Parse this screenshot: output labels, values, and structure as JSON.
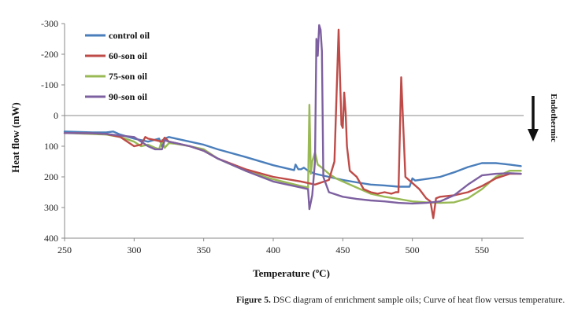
{
  "caption": {
    "label": "Figure 5.",
    "text": "DSC diagram of enrichment sample oils; Curve of heat flow versus temperature."
  },
  "chart_data": {
    "type": "line",
    "title": "",
    "xlabel": "Temperature (ºC)",
    "ylabel": "Heat flow (mW)",
    "xlim": [
      250,
      580
    ],
    "ylim": [
      -300,
      400
    ],
    "y_inverted": true,
    "x_ticks": [
      250,
      300,
      350,
      400,
      450,
      500,
      550
    ],
    "y_ticks": [
      -300,
      -200,
      -100,
      0,
      100,
      200,
      300,
      400
    ],
    "grid": false,
    "legend_position": "top-left",
    "annotation": {
      "text": "Endothermic",
      "arrow": "down",
      "position": "right"
    },
    "series": [
      {
        "name": "control oil",
        "color": "#4a7ebb",
        "x": [
          250,
          270,
          280,
          285,
          290,
          300,
          310,
          318,
          320,
          322,
          325,
          330,
          340,
          350,
          360,
          380,
          400,
          415,
          416,
          418,
          420,
          422,
          425,
          430,
          440,
          450,
          460,
          470,
          480,
          490,
          498,
          500,
          502,
          505,
          510,
          520,
          530,
          540,
          550,
          560,
          570,
          578
        ],
        "y": [
          52,
          55,
          55,
          52,
          62,
          75,
          85,
          75,
          100,
          75,
          70,
          75,
          85,
          95,
          110,
          135,
          162,
          178,
          160,
          175,
          175,
          170,
          180,
          190,
          200,
          210,
          218,
          225,
          228,
          232,
          232,
          205,
          212,
          210,
          207,
          200,
          185,
          168,
          155,
          155,
          160,
          165
        ]
      },
      {
        "name": "60-son oil",
        "color": "#be4b48",
        "x": [
          250,
          270,
          280,
          290,
          300,
          305,
          308,
          310,
          315,
          320,
          322,
          325,
          330,
          340,
          350,
          360,
          380,
          400,
          420,
          430,
          440,
          444,
          447,
          449,
          450,
          451,
          452,
          453,
          455,
          460,
          465,
          470,
          475,
          480,
          485,
          488,
          490,
          492,
          495,
          500,
          505,
          510,
          513,
          515,
          517,
          520,
          530,
          540,
          550,
          560,
          570,
          578
        ],
        "y": [
          57,
          58,
          60,
          70,
          100,
          95,
          70,
          75,
          80,
          85,
          72,
          85,
          90,
          100,
          115,
          140,
          175,
          200,
          215,
          225,
          210,
          150,
          -280,
          30,
          40,
          -75,
          -10,
          100,
          180,
          200,
          240,
          250,
          255,
          250,
          255,
          250,
          250,
          -125,
          200,
          220,
          240,
          270,
          280,
          335,
          270,
          265,
          260,
          250,
          230,
          205,
          190,
          190
        ]
      },
      {
        "name": "75-son oil",
        "color": "#98b954",
        "x": [
          250,
          270,
          280,
          290,
          300,
          305,
          310,
          315,
          318,
          320,
          322,
          325,
          330,
          340,
          350,
          360,
          380,
          400,
          420,
          425,
          426,
          427,
          428,
          430,
          432,
          435,
          440,
          445,
          450,
          460,
          470,
          480,
          490,
          500,
          510,
          520,
          530,
          540,
          550,
          560,
          570,
          578
        ],
        "y": [
          57,
          60,
          62,
          70,
          85,
          100,
          95,
          105,
          110,
          80,
          105,
          90,
          92,
          100,
          110,
          140,
          180,
          208,
          230,
          235,
          -35,
          190,
          150,
          120,
          160,
          170,
          190,
          205,
          215,
          235,
          255,
          265,
          272,
          280,
          283,
          285,
          283,
          270,
          240,
          200,
          180,
          180
        ]
      },
      {
        "name": "90-son oil",
        "color": "#7d60a0",
        "x": [
          250,
          270,
          280,
          290,
          300,
          310,
          315,
          320,
          322,
          325,
          330,
          340,
          350,
          360,
          380,
          400,
          420,
          425,
          426,
          428,
          430,
          431,
          432,
          433,
          434,
          435,
          436,
          440,
          450,
          460,
          470,
          480,
          490,
          500,
          510,
          520,
          530,
          540,
          550,
          560,
          570,
          578
        ],
        "y": [
          57,
          58,
          60,
          65,
          70,
          100,
          110,
          110,
          80,
          85,
          90,
          100,
          115,
          140,
          180,
          215,
          235,
          240,
          305,
          260,
          150,
          -250,
          -195,
          -295,
          -280,
          -210,
          200,
          250,
          265,
          272,
          277,
          280,
          285,
          287,
          285,
          280,
          260,
          225,
          195,
          190,
          188,
          190
        ]
      }
    ]
  }
}
